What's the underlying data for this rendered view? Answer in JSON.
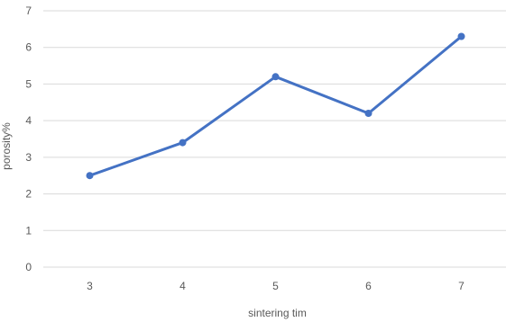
{
  "chart_data": {
    "type": "line",
    "title": "",
    "xlabel": "sintering tim",
    "ylabel": "porosity%",
    "categories": [
      "3",
      "4",
      "5",
      "6",
      "7"
    ],
    "series": [
      {
        "values": [
          2.5,
          3.4,
          5.2,
          4.2,
          6.3
        ],
        "color": "#4472c4"
      }
    ],
    "ylim": [
      0,
      7
    ],
    "yticks": [
      "0",
      "1",
      "2",
      "3",
      "4",
      "5",
      "6",
      "7"
    ],
    "grid": true,
    "gridline_color": "#d9d9d9",
    "legend": "none"
  }
}
